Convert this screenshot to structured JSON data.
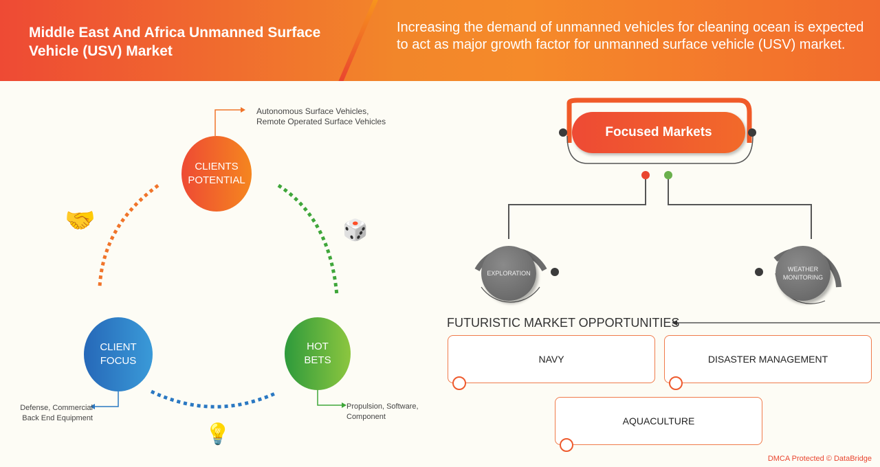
{
  "header": {
    "title": "Middle East And Africa Unmanned Surface Vehicle (USV) Market",
    "subtitle": "Increasing the demand of unmanned vehicles for cleaning ocean is expected to act as major growth factor for unmanned surface vehicle (USV) market."
  },
  "cycle": {
    "clients_potential": {
      "label": "CLIENTS POTENTIAL",
      "note": "Autonomous Surface Vehicles, Remote Operated Surface Vehicles",
      "color": "#f05a28"
    },
    "client_focus": {
      "label": "CLIENT FOCUS",
      "note": "Defense, Commercial Back End Equipment",
      "color": "#2a78c2"
    },
    "hot_bets": {
      "label": "HOT BETS",
      "note": "Propulsion, Software, Component",
      "color": "#3fa63a"
    }
  },
  "focused": {
    "title": "Focused Markets",
    "items": [
      "EXPLORATION",
      "WEATHER MONITORING"
    ]
  },
  "opportunities": {
    "title": "FUTURISTIC MARKET OPPORTUNITIES",
    "items": [
      "NAVY",
      "DISASTER MANAGEMENT",
      "AQUACULTURE"
    ]
  },
  "footer": "DMCA Protected © DataBridge"
}
